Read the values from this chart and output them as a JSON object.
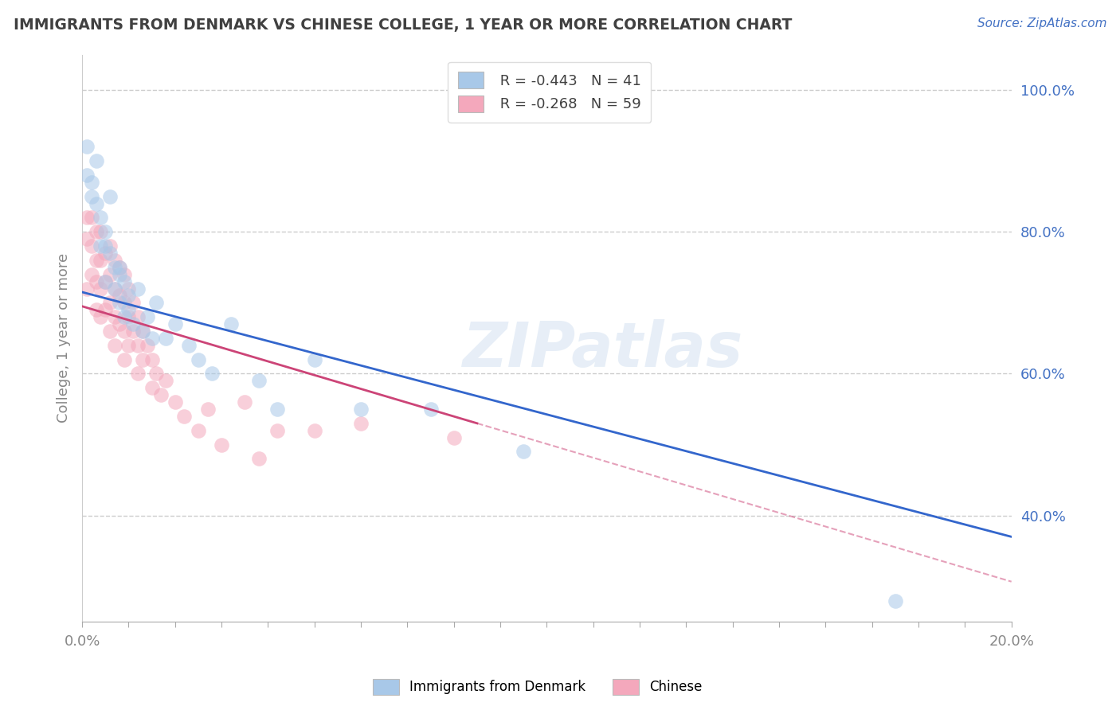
{
  "title": "IMMIGRANTS FROM DENMARK VS CHINESE COLLEGE, 1 YEAR OR MORE CORRELATION CHART",
  "source_text": "Source: ZipAtlas.com",
  "ylabel": "College, 1 year or more",
  "xlim": [
    0.0,
    0.2
  ],
  "ylim": [
    0.25,
    1.05
  ],
  "yticks_right": [
    0.4,
    0.6,
    0.8,
    1.0
  ],
  "yticklabels_right": [
    "40.0%",
    "60.0%",
    "80.0%",
    "100.0%"
  ],
  "legend_R1": "R = -0.443",
  "legend_N1": "N = 41",
  "legend_R2": "R = -0.268",
  "legend_N2": "N = 59",
  "color_denmark": "#a8c8e8",
  "color_chinese": "#f4a8bc",
  "watermark_text": "ZIPatlas",
  "denmark_scatter_x": [
    0.001,
    0.001,
    0.002,
    0.002,
    0.003,
    0.003,
    0.004,
    0.004,
    0.005,
    0.005,
    0.005,
    0.006,
    0.006,
    0.007,
    0.007,
    0.008,
    0.008,
    0.008,
    0.009,
    0.009,
    0.01,
    0.01,
    0.011,
    0.012,
    0.013,
    0.014,
    0.015,
    0.016,
    0.018,
    0.02,
    0.023,
    0.025,
    0.028,
    0.032,
    0.038,
    0.042,
    0.05,
    0.06,
    0.075,
    0.095,
    0.175
  ],
  "denmark_scatter_y": [
    0.92,
    0.88,
    0.87,
    0.85,
    0.84,
    0.9,
    0.82,
    0.78,
    0.8,
    0.78,
    0.73,
    0.77,
    0.85,
    0.75,
    0.72,
    0.74,
    0.7,
    0.75,
    0.73,
    0.68,
    0.71,
    0.69,
    0.67,
    0.72,
    0.66,
    0.68,
    0.65,
    0.7,
    0.65,
    0.67,
    0.64,
    0.62,
    0.6,
    0.67,
    0.59,
    0.55,
    0.62,
    0.55,
    0.55,
    0.49,
    0.28
  ],
  "chinese_scatter_x": [
    0.001,
    0.001,
    0.001,
    0.002,
    0.002,
    0.002,
    0.003,
    0.003,
    0.003,
    0.003,
    0.004,
    0.004,
    0.004,
    0.004,
    0.005,
    0.005,
    0.005,
    0.006,
    0.006,
    0.006,
    0.006,
    0.007,
    0.007,
    0.007,
    0.007,
    0.008,
    0.008,
    0.008,
    0.009,
    0.009,
    0.009,
    0.009,
    0.01,
    0.01,
    0.01,
    0.011,
    0.011,
    0.012,
    0.012,
    0.012,
    0.013,
    0.013,
    0.014,
    0.015,
    0.015,
    0.016,
    0.017,
    0.018,
    0.02,
    0.022,
    0.025,
    0.027,
    0.03,
    0.035,
    0.038,
    0.042,
    0.05,
    0.06,
    0.08
  ],
  "chinese_scatter_y": [
    0.82,
    0.79,
    0.72,
    0.82,
    0.78,
    0.74,
    0.8,
    0.76,
    0.73,
    0.69,
    0.8,
    0.76,
    0.72,
    0.68,
    0.77,
    0.73,
    0.69,
    0.78,
    0.74,
    0.7,
    0.66,
    0.76,
    0.72,
    0.68,
    0.64,
    0.75,
    0.71,
    0.67,
    0.74,
    0.7,
    0.66,
    0.62,
    0.72,
    0.68,
    0.64,
    0.7,
    0.66,
    0.68,
    0.64,
    0.6,
    0.66,
    0.62,
    0.64,
    0.62,
    0.58,
    0.6,
    0.57,
    0.59,
    0.56,
    0.54,
    0.52,
    0.55,
    0.5,
    0.56,
    0.48,
    0.52,
    0.52,
    0.53,
    0.51
  ],
  "denmark_line_x": [
    0.0,
    0.2
  ],
  "denmark_line_y": [
    0.715,
    0.37
  ],
  "chinese_line_x": [
    0.0,
    0.085
  ],
  "chinese_line_y": [
    0.695,
    0.53
  ],
  "background_color": "#ffffff",
  "grid_color": "#cccccc",
  "title_color": "#404040",
  "axis_color": "#888888",
  "right_axis_color": "#4472c4"
}
